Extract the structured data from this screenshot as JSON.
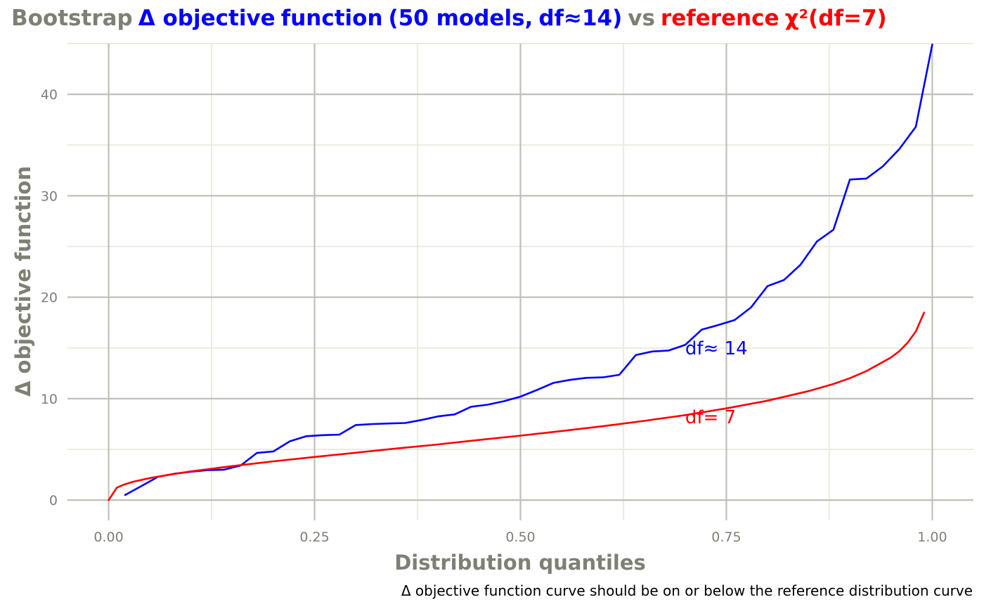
{
  "title": {
    "parts": [
      {
        "text": "Bootstrap",
        "color": "#7f7f75"
      },
      {
        "text": "Δ objective",
        "color": "#0000ff"
      },
      {
        "text": "function",
        "color": "#0000ff"
      },
      {
        "text": "(50 models,",
        "color": "#0000ff"
      },
      {
        "text": "df≈14)",
        "color": "#0000ff"
      },
      {
        "text": "vs",
        "color": "#7f7f75"
      },
      {
        "text": "reference",
        "color": "#ff0000"
      },
      {
        "text": "χ²(df=7)",
        "color": "#ff0000"
      }
    ]
  },
  "caption": "Δ objective function curve should be on or below the reference distribution curve",
  "colors": {
    "text": "#7f7f75",
    "major_grid": "#c0c0b8",
    "minor_grid": "#ebebdf",
    "bootstrap": "#0000ff",
    "reference": "#ff0000"
  },
  "chart_data": {
    "type": "line",
    "xlabel": "Distribution quantiles",
    "ylabel": "Δ objective function",
    "xlim": [
      -0.05,
      1.05
    ],
    "ylim": [
      -2,
      45
    ],
    "xticks": [
      0,
      0.25,
      0.5,
      0.75,
      1
    ],
    "xtick_labels": [
      "0.00",
      "0.25",
      "0.50",
      "0.75",
      "1.00"
    ],
    "yticks": [
      0,
      10,
      20,
      30,
      40
    ],
    "ytick_labels": [
      "0",
      "10",
      "20",
      "30",
      "40"
    ],
    "grid": true,
    "series": [
      {
        "key": "bootstrap",
        "label": "df≈ 14",
        "label_at": [
          0.7,
          15
        ],
        "x": [
          0.02,
          0.04,
          0.06,
          0.08,
          0.1,
          0.12,
          0.14,
          0.16,
          0.18,
          0.2,
          0.22,
          0.24,
          0.26,
          0.28,
          0.3,
          0.32,
          0.34,
          0.36,
          0.38,
          0.4,
          0.42,
          0.44,
          0.46,
          0.48,
          0.5,
          0.52,
          0.54,
          0.56,
          0.58,
          0.6,
          0.62,
          0.64,
          0.66,
          0.68,
          0.7,
          0.72,
          0.74,
          0.76,
          0.78,
          0.8,
          0.82,
          0.84,
          0.86,
          0.88,
          0.9,
          0.92,
          0.94,
          0.96,
          0.98,
          1.0
        ],
        "y": [
          0.5,
          1.4,
          2.3,
          2.6,
          2.8,
          2.95,
          3.0,
          3.4,
          4.65,
          4.8,
          5.8,
          6.3,
          6.4,
          6.45,
          7.4,
          7.5,
          7.55,
          7.6,
          7.9,
          8.25,
          8.45,
          9.2,
          9.4,
          9.75,
          10.2,
          10.85,
          11.55,
          11.85,
          12.05,
          12.1,
          12.35,
          14.3,
          14.65,
          14.75,
          15.3,
          16.8,
          17.25,
          17.75,
          19.0,
          21.1,
          21.7,
          23.2,
          25.5,
          26.65,
          31.6,
          31.7,
          32.9,
          34.6,
          36.8,
          44.9
        ]
      },
      {
        "key": "reference",
        "label": "df= 7",
        "label_at": [
          0.7,
          8.2
        ],
        "x": [
          0,
          0.01,
          0.02,
          0.03,
          0.05,
          0.07,
          0.1,
          0.15,
          0.2,
          0.25,
          0.3,
          0.35,
          0.4,
          0.45,
          0.5,
          0.55,
          0.6,
          0.65,
          0.7,
          0.75,
          0.8,
          0.85,
          0.88,
          0.9,
          0.92,
          0.94,
          0.95,
          0.96,
          0.97,
          0.98,
          0.99
        ],
        "y": [
          0,
          1.24,
          1.56,
          1.81,
          2.17,
          2.45,
          2.83,
          3.35,
          3.82,
          4.25,
          4.67,
          5.09,
          5.49,
          5.93,
          6.35,
          6.81,
          7.28,
          7.81,
          8.38,
          9.04,
          9.8,
          10.75,
          11.45,
          12.02,
          12.72,
          13.61,
          14.07,
          14.68,
          15.51,
          16.62,
          18.48
        ]
      }
    ]
  }
}
